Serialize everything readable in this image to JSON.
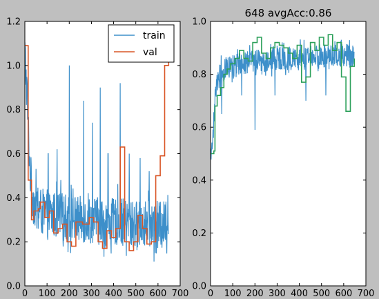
{
  "chart_data": [
    {
      "type": "line",
      "title": "",
      "xlabel": "",
      "ylabel": "",
      "xlim": [
        0,
        700
      ],
      "ylim": [
        0,
        1.2
      ],
      "xticks": [
        0,
        100,
        200,
        300,
        400,
        500,
        600,
        700
      ],
      "yticks": [
        0.0,
        0.2,
        0.4,
        0.6,
        0.8,
        1.0,
        1.2
      ],
      "legend": {
        "placement": "top-right",
        "entries": [
          "train",
          "val"
        ]
      },
      "series": [
        {
          "name": "train",
          "color": "#3d8fca",
          "style": "noisy",
          "x": [
            0,
            8,
            15,
            22,
            30,
            40,
            55,
            70,
            85,
            100,
            120,
            140,
            160,
            180,
            190,
            200,
            215,
            230,
            260,
            290,
            320,
            340,
            360,
            380,
            400,
            420,
            440,
            460,
            480,
            500,
            520,
            540,
            560,
            580,
            600,
            620,
            640,
            648
          ],
          "y": [
            1.06,
            0.9,
            0.75,
            0.55,
            0.45,
            0.38,
            0.35,
            0.34,
            0.33,
            0.33,
            0.32,
            0.32,
            0.32,
            0.31,
            0.31,
            0.31,
            0.31,
            0.3,
            0.3,
            0.3,
            0.3,
            0.29,
            0.29,
            0.29,
            0.29,
            0.29,
            0.29,
            0.28,
            0.28,
            0.28,
            0.28,
            0.28,
            0.28,
            0.28,
            0.28,
            0.27,
            0.3,
            0.35
          ],
          "spikes": [
            {
              "x": 105,
              "y": 0.6
            },
            {
              "x": 145,
              "y": 0.62
            },
            {
              "x": 200,
              "y": 1.0
            },
            {
              "x": 265,
              "y": 0.84
            },
            {
              "x": 305,
              "y": 0.74
            },
            {
              "x": 340,
              "y": 0.9
            },
            {
              "x": 430,
              "y": 0.92
            },
            {
              "x": 375,
              "y": 0.6
            },
            {
              "x": 470,
              "y": 0.6
            },
            {
              "x": 520,
              "y": 0.58
            },
            {
              "x": 560,
              "y": 0.52
            }
          ]
        },
        {
          "name": "val",
          "color": "#d95626",
          "style": "step",
          "x": [
            0,
            15,
            30,
            40,
            60,
            70,
            90,
            110,
            130,
            150,
            170,
            190,
            210,
            230,
            260,
            290,
            310,
            330,
            350,
            370,
            390,
            410,
            430,
            450,
            470,
            490,
            510,
            530,
            550,
            570,
            590,
            610,
            630,
            648
          ],
          "y": [
            1.09,
            0.48,
            0.3,
            0.34,
            0.35,
            0.38,
            0.31,
            0.34,
            0.24,
            0.26,
            0.28,
            0.2,
            0.18,
            0.29,
            0.28,
            0.31,
            0.29,
            0.2,
            0.17,
            0.25,
            0.22,
            0.26,
            0.63,
            0.2,
            0.16,
            0.2,
            0.32,
            0.26,
            0.19,
            0.2,
            0.5,
            0.59,
            1.0,
            1.08
          ]
        }
      ]
    },
    {
      "type": "line",
      "title": "648 avgAcc:0.86",
      "xlabel": "",
      "ylabel": "",
      "xlim": [
        0,
        700
      ],
      "ylim": [
        0,
        1.0
      ],
      "xticks": [
        0,
        100,
        200,
        300,
        400,
        500,
        600,
        700
      ],
      "yticks": [
        0.0,
        0.2,
        0.4,
        0.6,
        0.8,
        1.0
      ],
      "series": [
        {
          "color": "#3d8fca",
          "style": "noisy",
          "x": [
            0,
            10,
            20,
            30,
            45,
            60,
            80,
            100,
            130,
            160,
            190,
            220,
            250,
            280,
            320,
            360,
            400,
            440,
            480,
            520,
            560,
            600,
            630,
            648
          ],
          "y": [
            0.5,
            0.55,
            0.7,
            0.78,
            0.8,
            0.82,
            0.83,
            0.83,
            0.84,
            0.84,
            0.85,
            0.85,
            0.85,
            0.86,
            0.86,
            0.86,
            0.86,
            0.86,
            0.87,
            0.87,
            0.87,
            0.87,
            0.87,
            0.86
          ],
          "dips": [
            {
              "x": 200,
              "y": 0.59
            },
            {
              "x": 140,
              "y": 0.72
            },
            {
              "x": 290,
              "y": 0.72
            },
            {
              "x": 430,
              "y": 0.7
            },
            {
              "x": 520,
              "y": 0.72
            },
            {
              "x": 50,
              "y": 0.65
            }
          ]
        },
        {
          "color": "#2ca05a",
          "style": "step",
          "x": [
            0,
            15,
            20,
            30,
            45,
            60,
            75,
            90,
            110,
            130,
            150,
            170,
            190,
            210,
            230,
            250,
            270,
            290,
            310,
            330,
            350,
            370,
            390,
            410,
            430,
            450,
            470,
            490,
            510,
            530,
            550,
            570,
            590,
            610,
            630,
            648
          ],
          "y": [
            0.5,
            0.51,
            0.68,
            0.72,
            0.75,
            0.8,
            0.82,
            0.84,
            0.86,
            0.89,
            0.86,
            0.85,
            0.92,
            0.94,
            0.88,
            0.86,
            0.9,
            0.92,
            0.91,
            0.9,
            0.88,
            0.86,
            0.91,
            0.77,
            0.79,
            0.92,
            0.89,
            0.94,
            0.91,
            0.95,
            0.89,
            0.92,
            0.79,
            0.66,
            0.83,
            0.86
          ]
        }
      ]
    }
  ]
}
